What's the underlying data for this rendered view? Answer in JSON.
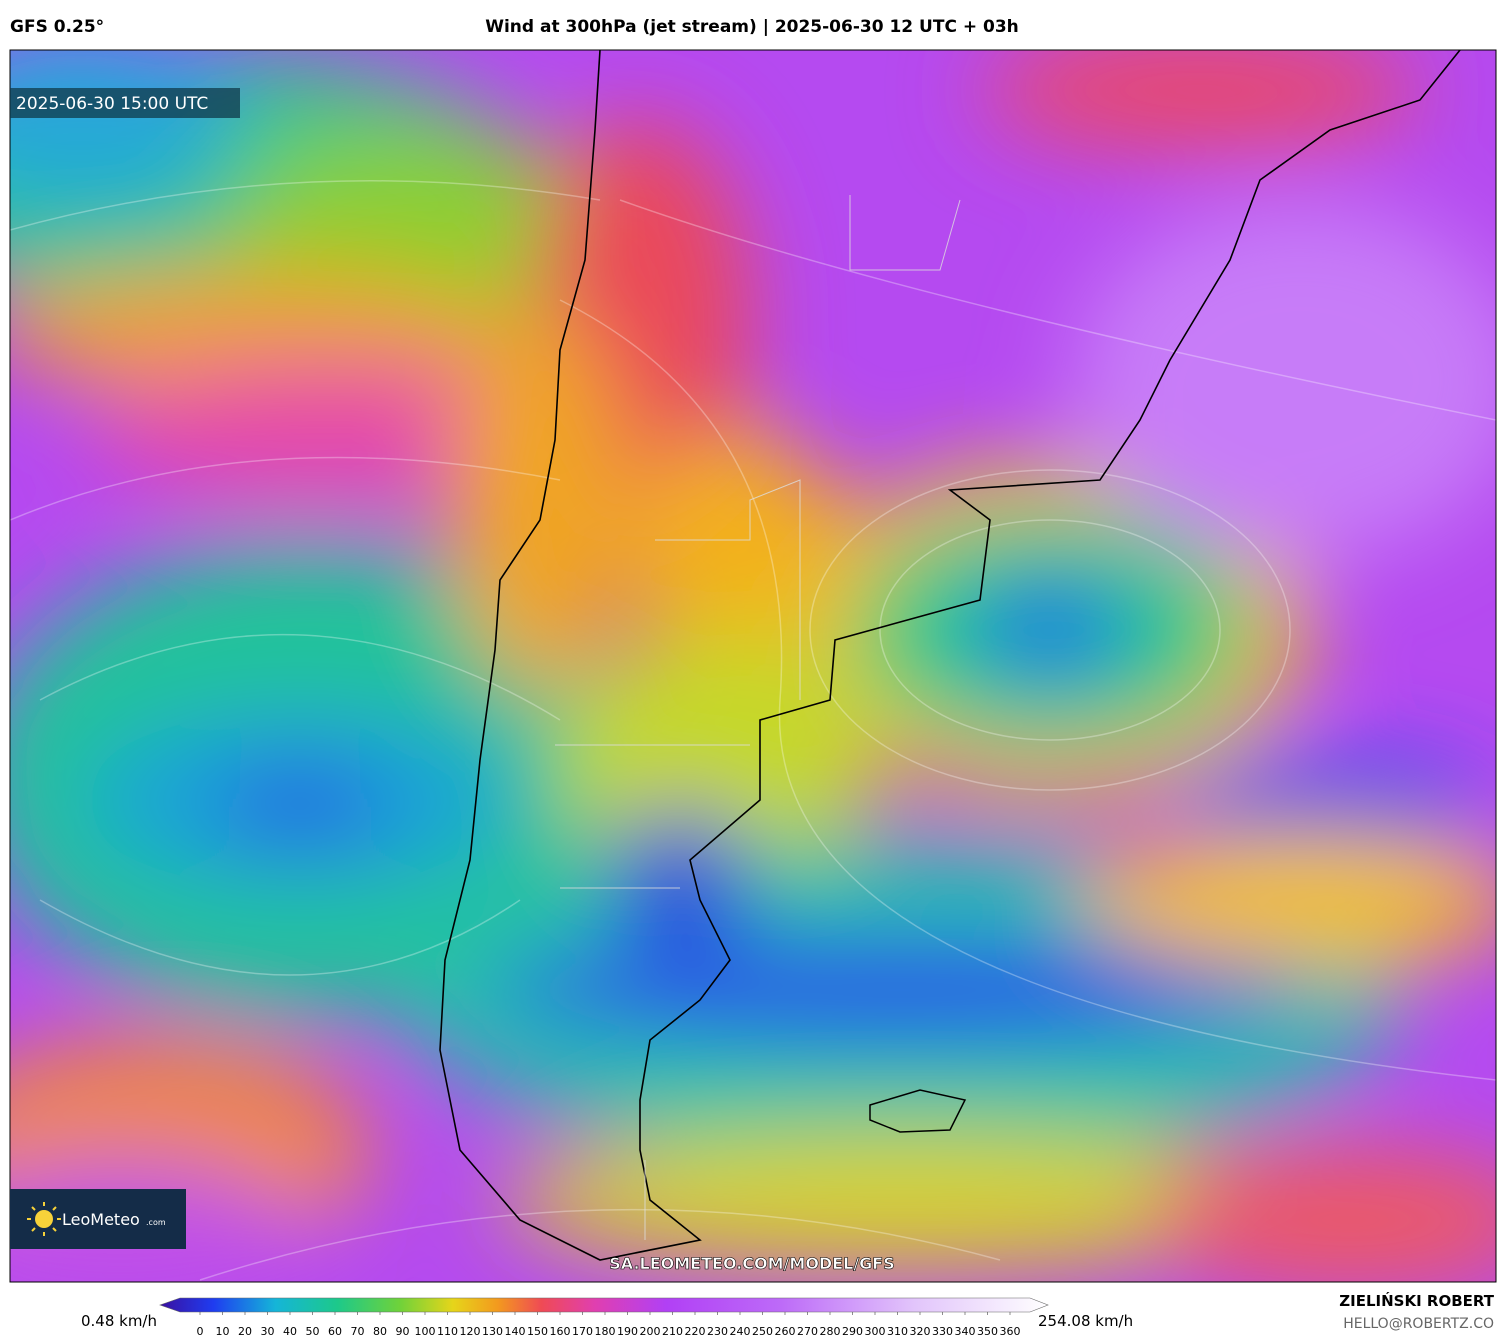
{
  "header": {
    "model": "GFS 0.25°",
    "title": "Wind at 300hPa (jet stream) | 2025-06-30 12 UTC + 03h"
  },
  "map": {
    "valid_time": "2025-06-30 15:00 UTC",
    "logo": {
      "name": "LeoMeteo",
      "suffix": ".com"
    },
    "watermark": "SA.LEOMETEO.COM/MODEL/GFS"
  },
  "colorbar": {
    "min_label": "0.48 km/h",
    "max_label": "254.08 km/h",
    "ticks": [
      0,
      10,
      20,
      30,
      40,
      50,
      60,
      70,
      80,
      90,
      100,
      110,
      120,
      130,
      140,
      150,
      160,
      170,
      180,
      190,
      200,
      210,
      220,
      230,
      240,
      250,
      260,
      270,
      280,
      290,
      300,
      310,
      320,
      330,
      340,
      350,
      360
    ]
  },
  "footer": {
    "author": "ZIELIŃSKI ROBERT",
    "email": "HELLO@ROBERTZ.CO"
  }
}
